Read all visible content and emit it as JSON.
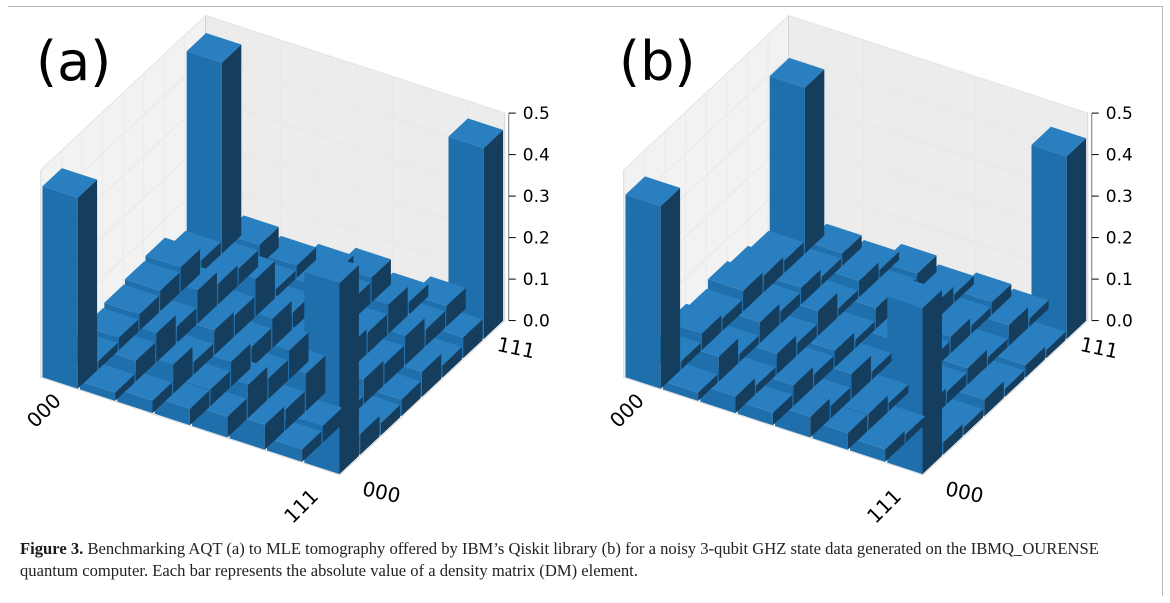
{
  "chart_data": [
    {
      "type": "bar3d",
      "panel_label": "(a)",
      "x_ticks": [
        "000",
        "111"
      ],
      "y_ticks": [
        "000",
        "111"
      ],
      "z_ticks": [
        "0.0",
        "0.1",
        "0.2",
        "0.3",
        "0.4",
        "0.5"
      ],
      "zlim": [
        0,
        0.5
      ],
      "bar_color": "#1f77b4",
      "values": [
        [
          0.46,
          0.02,
          0.03,
          0.04,
          0.05,
          0.06,
          0.03,
          0.46
        ],
        [
          0.02,
          0.05,
          0.07,
          0.04,
          0.08,
          0.05,
          0.04,
          0.05
        ],
        [
          0.03,
          0.07,
          0.03,
          0.06,
          0.05,
          0.09,
          0.02,
          0.03
        ],
        [
          0.04,
          0.04,
          0.06,
          0.05,
          0.07,
          0.04,
          0.06,
          0.04
        ],
        [
          0.05,
          0.08,
          0.05,
          0.07,
          0.04,
          0.06,
          0.05,
          0.06
        ],
        [
          0.06,
          0.05,
          0.09,
          0.04,
          0.06,
          0.05,
          0.07,
          0.03
        ],
        [
          0.03,
          0.04,
          0.02,
          0.06,
          0.05,
          0.07,
          0.04,
          0.05
        ],
        [
          0.46,
          0.05,
          0.03,
          0.04,
          0.06,
          0.03,
          0.05,
          0.46
        ]
      ]
    },
    {
      "type": "bar3d",
      "panel_label": "(b)",
      "x_ticks": [
        "000",
        "111"
      ],
      "y_ticks": [
        "000",
        "111"
      ],
      "z_ticks": [
        "0.0",
        "0.1",
        "0.2",
        "0.3",
        "0.4",
        "0.5"
      ],
      "zlim": [
        0,
        0.5
      ],
      "bar_color": "#1f77b4",
      "values": [
        [
          0.44,
          0.02,
          0.04,
          0.03,
          0.05,
          0.04,
          0.03,
          0.4
        ],
        [
          0.02,
          0.06,
          0.02,
          0.05,
          0.03,
          0.04,
          0.02,
          0.03
        ],
        [
          0.04,
          0.02,
          0.05,
          0.03,
          0.06,
          0.02,
          0.04,
          0.02
        ],
        [
          0.03,
          0.05,
          0.03,
          0.04,
          0.02,
          0.05,
          0.03,
          0.04
        ],
        [
          0.05,
          0.03,
          0.06,
          0.02,
          0.05,
          0.03,
          0.04,
          0.02
        ],
        [
          0.04,
          0.04,
          0.02,
          0.05,
          0.03,
          0.04,
          0.02,
          0.03
        ],
        [
          0.03,
          0.02,
          0.04,
          0.03,
          0.04,
          0.02,
          0.05,
          0.02
        ],
        [
          0.4,
          0.03,
          0.02,
          0.04,
          0.02,
          0.03,
          0.02,
          0.44
        ]
      ]
    }
  ],
  "caption": {
    "label": "Figure 3.",
    "text": " Benchmarking AQT (a) to MLE tomography offered by IBM’s Qiskit library (b) for a noisy 3-qubit GHZ state data generated on the IBMQ_OURENSE quantum computer. Each bar represents the absolute value of a density matrix (DM) element."
  }
}
